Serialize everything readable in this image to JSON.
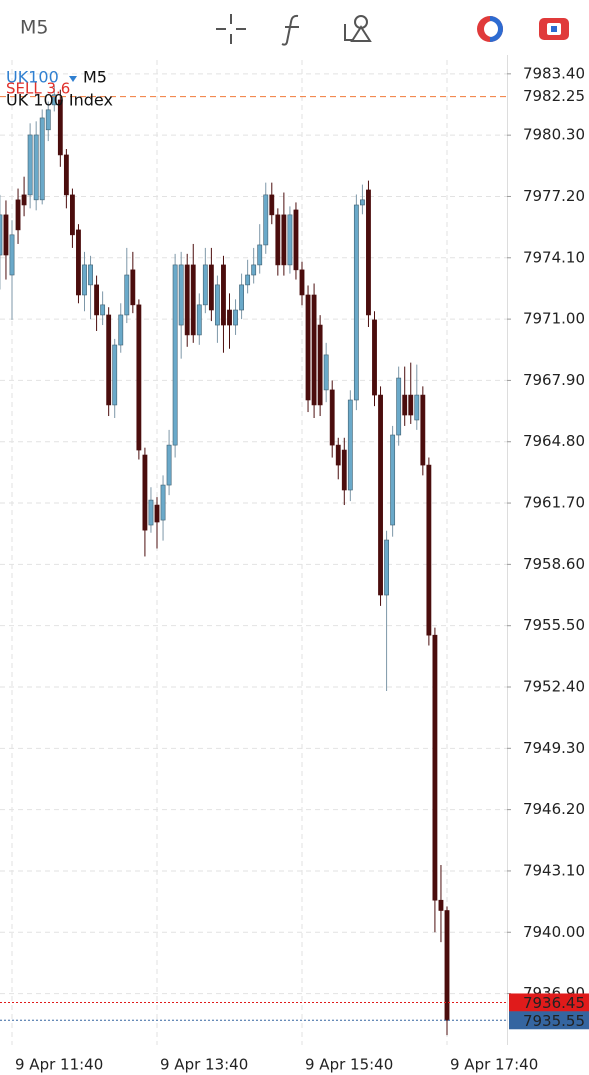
{
  "header": {
    "timeframe": "M5"
  },
  "chart_data": {
    "type": "candlestick",
    "symbol": "UK100",
    "timeframe": "M5",
    "description": "UK 100 Index",
    "trade_label": "SELL 3.6",
    "up_color": "#6aa9c9",
    "down_color": "#4b0d0d",
    "open": [
      7974.24,
      7976.27,
      7973.23,
      7977.03,
      7977.28,
      7977.28,
      7977.03,
      7977.03,
      7980.57,
      7981.83,
      7982.08,
      7979.3,
      7977.28,
      7975.51,
      7972.22,
      7972.73,
      7972.73,
      7971.21,
      7971.21,
      7966.66,
      7969.69,
      7971.21,
      7973.49,
      7971.72,
      7964.13,
      7960.59,
      7961.6,
      7960.84,
      7962.61,
      7964.63,
      7970.7,
      7973.74,
      7973.74,
      7970.2,
      7971.72,
      7973.74,
      7970.7,
      7973.74,
      7971.46,
      7970.7,
      7971.46,
      7972.73,
      7973.23,
      7973.74,
      7974.75,
      7977.28,
      7976.27,
      7976.27,
      7973.74,
      7976.52,
      7973.49,
      7972.22,
      7972.22,
      7970.7,
      7967.42,
      7967.42,
      7964.63,
      7964.38,
      7962.36,
      7966.91,
      7976.77,
      7977.53,
      7970.96,
      7967.16,
      7957.05,
      7960.59,
      7965.14,
      7967.16,
      7967.16,
      7965.9,
      7967.16,
      7963.62,
      7955.02,
      7941.62,
      7941.1
    ],
    "high": [
      7977.28,
      7977.0,
      7976.0,
      7977.6,
      7978.2,
      7980.9,
      7981.0,
      7981.6,
      7982.0,
      7982.8,
      7982.6,
      7979.6,
      7977.6,
      7975.8,
      7974.4,
      7974.2,
      7973.2,
      7972.4,
      7971.6,
      7970.0,
      7971.8,
      7974.6,
      7974.4,
      7972.0,
      7964.5,
      7962.5,
      7962.0,
      7963.1,
      7965.4,
      7974.3,
      7974.4,
      7974.3,
      7974.8,
      7972.3,
      7974.6,
      7974.6,
      7973.2,
      7974.2,
      7972.3,
      7972.0,
      7973.3,
      7974.0,
      7974.6,
      7975.8,
      7977.9,
      7977.9,
      7976.6,
      7977.4,
      7976.7,
      7976.9,
      7973.9,
      7972.7,
      7972.8,
      7971.2,
      7969.8,
      7967.9,
      7965.0,
      7965.0,
      7967.4,
      7977.3,
      7977.8,
      7978.0,
      7971.4,
      7967.6,
      7960.3,
      7965.6,
      7968.6,
      7968.6,
      7968.8,
      7968.7,
      7967.6,
      7964.0,
      7955.4,
      7943.4,
      7941.3
    ],
    "low": [
      7972.5,
      7973.0,
      7970.96,
      7974.8,
      7976.2,
      7976.6,
      7976.5,
      7976.8,
      7980.0,
      7981.5,
      7978.7,
      7976.6,
      7974.6,
      7971.8,
      7971.4,
      7971.0,
      7970.4,
      7970.7,
      7966.1,
      7966.0,
      7969.3,
      7970.8,
      7971.3,
      7963.9,
      7959.0,
      7960.2,
      7959.4,
      7959.8,
      7962.1,
      7964.0,
      7969.0,
      7969.6,
      7969.8,
      7969.7,
      7971.3,
      7970.9,
      7969.8,
      7969.3,
      7969.5,
      7970.2,
      7971.0,
      7972.3,
      7972.8,
      7973.3,
      7974.3,
      7975.8,
      7973.2,
      7973.2,
      7973.3,
      7973.0,
      7971.7,
      7966.3,
      7966.0,
      7966.1,
      7966.8,
      7964.0,
      7962.9,
      7961.6,
      7961.8,
      7966.4,
      7976.3,
      7970.6,
      7966.6,
      7956.5,
      7952.2,
      7960.0,
      7964.6,
      7965.6,
      7965.7,
      7965.4,
      7963.1,
      7954.5,
      7940.0,
      7939.5,
      7934.8
    ],
    "close": [
      7976.27,
      7974.24,
      7975.26,
      7975.51,
      7976.77,
      7980.31,
      7980.31,
      7981.17,
      7981.58,
      7982.34,
      7979.3,
      7977.28,
      7975.26,
      7972.22,
      7973.74,
      7973.74,
      7971.21,
      7971.72,
      7966.66,
      7969.69,
      7971.21,
      7973.23,
      7971.72,
      7964.38,
      7960.33,
      7961.85,
      7960.74,
      7962.61,
      7964.63,
      7973.74,
      7973.74,
      7970.2,
      7970.2,
      7971.72,
      7973.74,
      7971.46,
      7972.73,
      7970.7,
      7970.7,
      7971.46,
      7972.73,
      7973.23,
      7973.74,
      7974.75,
      7977.28,
      7976.27,
      7973.74,
      7973.74,
      7976.27,
      7973.49,
      7972.22,
      7966.91,
      7966.66,
      7966.66,
      7969.19,
      7964.63,
      7963.62,
      7962.36,
      7966.91,
      7976.77,
      7977.03,
      7971.21,
      7967.16,
      7957.05,
      7959.83,
      7965.14,
      7968.02,
      7966.15,
      7966.15,
      7967.16,
      7963.62,
      7955.02,
      7941.62,
      7941.1,
      7935.55
    ],
    "ylim": [
      7934.3,
      7984.1
    ],
    "yticks": [
      {
        "value": 7983.4,
        "label": "7983.40"
      },
      {
        "value": 7980.3,
        "label": "7980.30"
      },
      {
        "value": 7977.2,
        "label": "7977.20"
      },
      {
        "value": 7974.1,
        "label": "7974.10"
      },
      {
        "value": 7971,
        "label": "7971.00"
      },
      {
        "value": 7967.9,
        "label": "7967.90"
      },
      {
        "value": 7964.8,
        "label": "7964.80"
      },
      {
        "value": 7961.7,
        "label": "7961.70"
      },
      {
        "value": 7958.6,
        "label": "7958.60"
      },
      {
        "value": 7955.5,
        "label": "7955.50"
      },
      {
        "value": 7952.4,
        "label": "7952.40"
      },
      {
        "value": 7949.3,
        "label": "7949.30"
      },
      {
        "value": 7946.2,
        "label": "7946.20"
      },
      {
        "value": 7943.1,
        "label": "7943.10"
      },
      {
        "value": 7940,
        "label": "7940.00"
      },
      {
        "value": 7936.9,
        "label": "7936.90"
      }
    ],
    "xticks": [
      {
        "value": 2,
        "label": "9 Apr 11:40"
      },
      {
        "value": 26,
        "label": "9 Apr 13:40"
      },
      {
        "value": 50,
        "label": "9 Apr 15:40"
      },
      {
        "value": 74,
        "label": "9 Apr 17:40"
      }
    ],
    "price_lines": [
      {
        "value": 7982.25,
        "label": "7982.25",
        "color": "#f07a3a"
      },
      {
        "value": 7936.45,
        "label": "7936.45",
        "color": "#e01b1b"
      },
      {
        "value": 7935.55,
        "label": "7935.55",
        "color": "#3565a0"
      }
    ],
    "grid": true
  }
}
